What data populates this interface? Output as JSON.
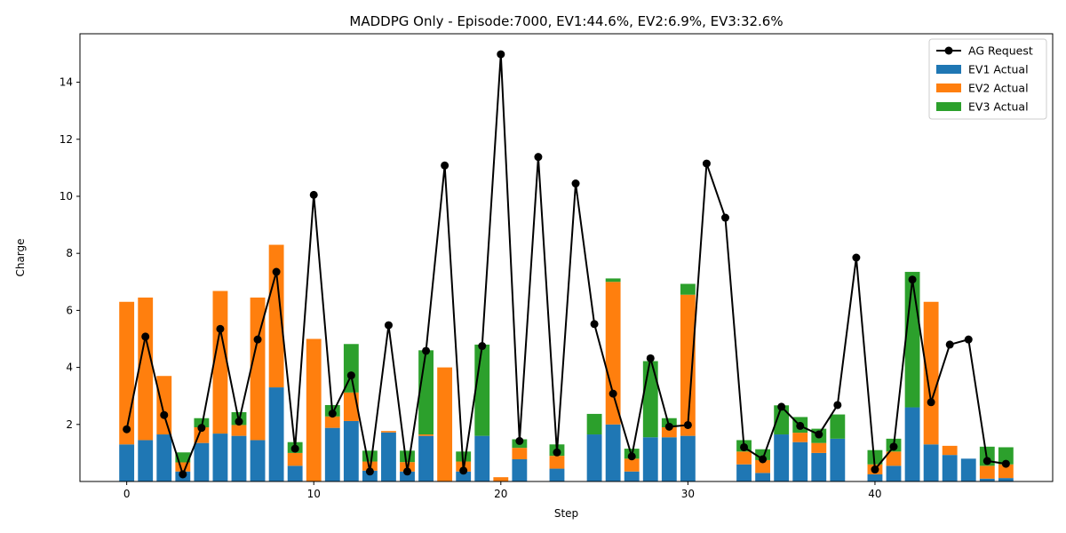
{
  "chart_data": {
    "type": "bar",
    "title": "MADDPG Only - Episode:7000, EV1:44.6%, EV2:6.9%, EV3:32.6%",
    "xlabel": "Step",
    "ylabel": "Charge",
    "xlim": [
      -2.5,
      49.5
    ],
    "ylim": [
      0,
      15.7
    ],
    "xticks": [
      0,
      10,
      20,
      30,
      40
    ],
    "yticks": [
      2,
      4,
      6,
      8,
      10,
      12,
      14
    ],
    "grid": false,
    "legend_position": "top-right",
    "stacked": true,
    "x": [
      0,
      1,
      2,
      3,
      4,
      5,
      6,
      7,
      8,
      9,
      10,
      11,
      12,
      13,
      14,
      15,
      16,
      17,
      18,
      19,
      20,
      21,
      22,
      23,
      24,
      25,
      26,
      27,
      28,
      29,
      30,
      31,
      32,
      33,
      34,
      35,
      36,
      37,
      38,
      39,
      40,
      41,
      42,
      43,
      44,
      45,
      46,
      47
    ],
    "series": [
      {
        "name": "EV1 Actual",
        "kind": "bar",
        "color": "#1f77b4",
        "values": [
          1.3,
          1.45,
          1.65,
          0.35,
          1.35,
          1.68,
          1.6,
          1.45,
          3.3,
          0.55,
          0,
          1.88,
          2.12,
          0.38,
          1.72,
          0.35,
          1.6,
          0,
          0.35,
          1.6,
          0,
          0.78,
          0,
          0.45,
          0,
          1.65,
          2.0,
          0.35,
          1.55,
          1.55,
          1.6,
          0,
          0,
          0.6,
          0.3,
          1.65,
          1.38,
          1.0,
          1.5,
          0,
          0.25,
          0.55,
          2.6,
          1.3,
          0.93,
          0.8,
          0.1,
          0.12
        ]
      },
      {
        "name": "EV2 Actual",
        "kind": "bar",
        "color": "#ff7f0e",
        "values": [
          5.0,
          5.0,
          2.05,
          0.32,
          0.55,
          5.0,
          0.38,
          5.0,
          5.0,
          0.45,
          5.0,
          0.4,
          1.0,
          0.32,
          0.05,
          0.33,
          0.05,
          4.0,
          0.35,
          0,
          0.15,
          0.4,
          0,
          0.45,
          0,
          0,
          5.0,
          0.45,
          0,
          0.35,
          4.95,
          0,
          0,
          0.45,
          0.45,
          0,
          0.33,
          0.35,
          0,
          0,
          0.35,
          0.5,
          0,
          5.0,
          0.32,
          0,
          0.45,
          0.48
        ]
      },
      {
        "name": "EV3 Actual",
        "kind": "bar",
        "color": "#2ca02c",
        "values": [
          0,
          0,
          0,
          0.35,
          0.32,
          0,
          0.45,
          0,
          0,
          0.38,
          0,
          0.4,
          1.7,
          0.38,
          0,
          0.4,
          2.95,
          0,
          0.35,
          3.2,
          0,
          0.3,
          0,
          0.4,
          0,
          0.72,
          0.12,
          0.35,
          2.67,
          0.32,
          0.38,
          0,
          0,
          0.4,
          0.38,
          1.02,
          0.55,
          0.5,
          0.85,
          0,
          0.5,
          0.45,
          4.75,
          0,
          0,
          0,
          0.67,
          0.6
        ]
      },
      {
        "name": "AG Request",
        "kind": "line",
        "color": "#000000",
        "values": [
          1.83,
          5.08,
          2.33,
          0.25,
          1.88,
          5.35,
          2.1,
          4.98,
          7.35,
          1.15,
          10.05,
          2.38,
          3.72,
          0.35,
          5.48,
          0.35,
          4.58,
          11.08,
          0.38,
          4.75,
          14.98,
          1.42,
          11.38,
          1.02,
          10.45,
          5.52,
          3.08,
          0.88,
          4.32,
          1.92,
          1.98,
          11.15,
          9.25,
          1.2,
          0.78,
          2.62,
          1.95,
          1.65,
          2.68,
          7.85,
          0.42,
          1.22,
          7.08,
          2.78,
          4.8,
          4.98,
          0.72,
          0.62
        ]
      }
    ]
  }
}
